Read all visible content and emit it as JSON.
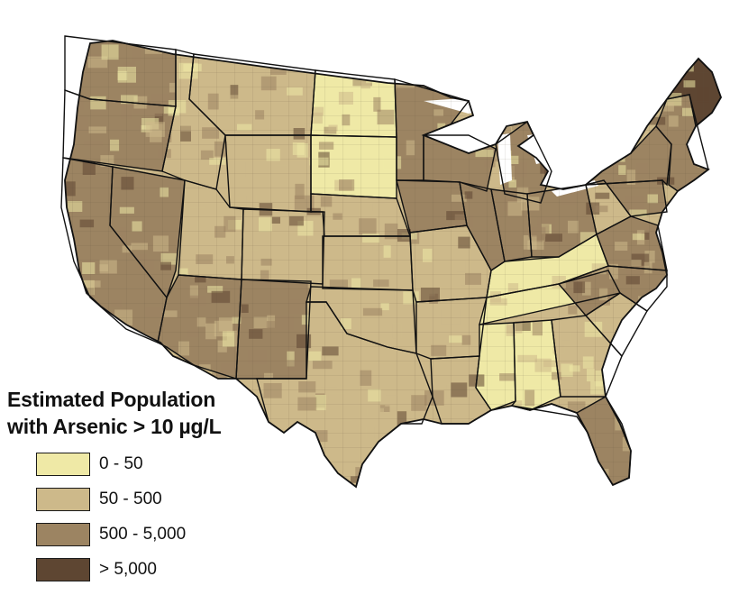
{
  "legend": {
    "title_line1": "Estimated Population",
    "title_line2": "with Arsenic > 10 µg/L",
    "classes": [
      {
        "label": "0 - 50",
        "color": "#efe9a6"
      },
      {
        "label": "50 - 500",
        "color": "#cdb98a"
      },
      {
        "label": "500 - 5,000",
        "color": "#9c8462"
      },
      {
        "label": "> 5,000",
        "color": "#5e4632"
      }
    ]
  },
  "colors": {
    "state_border": "#111111",
    "county_border": "#5a5040",
    "background": "#ffffff"
  },
  "regions": [
    {
      "name": "Washington",
      "class": 2
    },
    {
      "name": "Oregon",
      "class": 2
    },
    {
      "name": "California",
      "class": 2
    },
    {
      "name": "Nevada",
      "class": 2
    },
    {
      "name": "Idaho",
      "class": 1
    },
    {
      "name": "Montana",
      "class": 1
    },
    {
      "name": "Wyoming",
      "class": 1
    },
    {
      "name": "Utah",
      "class": 1
    },
    {
      "name": "Arizona",
      "class": 2
    },
    {
      "name": "New Mexico",
      "class": 2
    },
    {
      "name": "Colorado",
      "class": 1
    },
    {
      "name": "North Dakota",
      "class": 0
    },
    {
      "name": "South Dakota",
      "class": 0
    },
    {
      "name": "Nebraska",
      "class": 1
    },
    {
      "name": "Kansas",
      "class": 1
    },
    {
      "name": "Oklahoma",
      "class": 1
    },
    {
      "name": "Texas",
      "class": 1
    },
    {
      "name": "Minnesota",
      "class": 2
    },
    {
      "name": "Iowa",
      "class": 2
    },
    {
      "name": "Missouri",
      "class": 1
    },
    {
      "name": "Arkansas",
      "class": 1
    },
    {
      "name": "Louisiana",
      "class": 1
    },
    {
      "name": "Wisconsin",
      "class": 2
    },
    {
      "name": "Illinois",
      "class": 2
    },
    {
      "name": "Michigan",
      "class": 2
    },
    {
      "name": "Indiana",
      "class": 2
    },
    {
      "name": "Ohio",
      "class": 2
    },
    {
      "name": "Kentucky",
      "class": 0
    },
    {
      "name": "Tennessee",
      "class": 0
    },
    {
      "name": "Mississippi",
      "class": 0
    },
    {
      "name": "Alabama",
      "class": 0
    },
    {
      "name": "Georgia",
      "class": 1
    },
    {
      "name": "Florida",
      "class": 2
    },
    {
      "name": "South Carolina",
      "class": 1
    },
    {
      "name": "North Carolina",
      "class": 2
    },
    {
      "name": "Virginia",
      "class": 2
    },
    {
      "name": "West Virginia",
      "class": 1
    },
    {
      "name": "Pennsylvania",
      "class": 2
    },
    {
      "name": "New York",
      "class": 2
    },
    {
      "name": "New England",
      "class": 2
    },
    {
      "name": "Maine",
      "class": 3
    }
  ]
}
